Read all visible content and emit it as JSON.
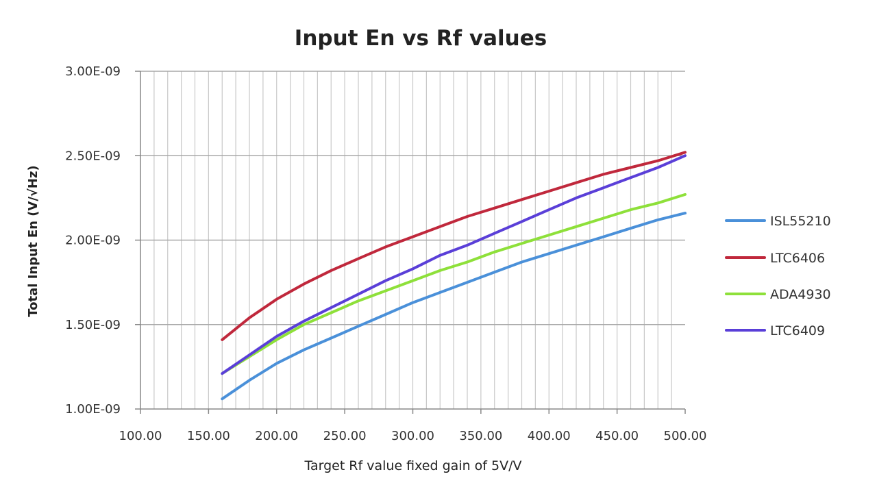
{
  "chart_data": {
    "type": "line",
    "title": "Input En vs Rf values",
    "xlabel": "Target Rf value fixed gain of 5V/V",
    "ylabel": "Total Input En (V/√Hz)",
    "xlim": [
      100,
      500
    ],
    "ylim": [
      1e-09,
      3e-09
    ],
    "x_ticks": [
      100,
      150,
      200,
      250,
      300,
      350,
      400,
      450,
      500
    ],
    "x_tick_labels": [
      "100.00",
      "150.00",
      "200.00",
      "250.00",
      "300.00",
      "350.00",
      "400.00",
      "450.00",
      "500.00"
    ],
    "y_ticks": [
      1e-09,
      1.5e-09,
      2e-09,
      2.5e-09,
      3e-09
    ],
    "y_tick_labels": [
      "1.00E-09",
      "1.50E-09",
      "2.00E-09",
      "2.50E-09",
      "3.00E-09"
    ],
    "grid": true,
    "legend_position": "right",
    "x": [
      160,
      180,
      200,
      220,
      240,
      260,
      280,
      300,
      320,
      340,
      360,
      380,
      400,
      420,
      440,
      460,
      480,
      500
    ],
    "series": [
      {
        "name": "ISL55210",
        "color": "#4a90d9",
        "values": [
          1.06e-09,
          1.17e-09,
          1.27e-09,
          1.35e-09,
          1.42e-09,
          1.49e-09,
          1.56e-09,
          1.63e-09,
          1.69e-09,
          1.75e-09,
          1.81e-09,
          1.87e-09,
          1.92e-09,
          1.97e-09,
          2.02e-09,
          2.07e-09,
          2.12e-09,
          2.16e-09
        ]
      },
      {
        "name": "LTC6406",
        "color": "#c0283c",
        "values": [
          1.41e-09,
          1.54e-09,
          1.65e-09,
          1.74e-09,
          1.82e-09,
          1.89e-09,
          1.96e-09,
          2.02e-09,
          2.08e-09,
          2.14e-09,
          2.19e-09,
          2.24e-09,
          2.29e-09,
          2.34e-09,
          2.39e-09,
          2.43e-09,
          2.47e-09,
          2.52e-09
        ]
      },
      {
        "name": "ADA4930",
        "color": "#8ee03a",
        "values": [
          1.21e-09,
          1.31e-09,
          1.41e-09,
          1.5e-09,
          1.57e-09,
          1.64e-09,
          1.7e-09,
          1.76e-09,
          1.82e-09,
          1.87e-09,
          1.93e-09,
          1.98e-09,
          2.03e-09,
          2.08e-09,
          2.13e-09,
          2.18e-09,
          2.22e-09,
          2.27e-09
        ]
      },
      {
        "name": "LTC6409",
        "color": "#5a3fd8",
        "values": [
          1.21e-09,
          1.32e-09,
          1.43e-09,
          1.52e-09,
          1.6e-09,
          1.68e-09,
          1.76e-09,
          1.83e-09,
          1.91e-09,
          1.97e-09,
          2.04e-09,
          2.11e-09,
          2.18e-09,
          2.25e-09,
          2.31e-09,
          2.37e-09,
          2.43e-09,
          2.5e-09
        ]
      }
    ]
  }
}
